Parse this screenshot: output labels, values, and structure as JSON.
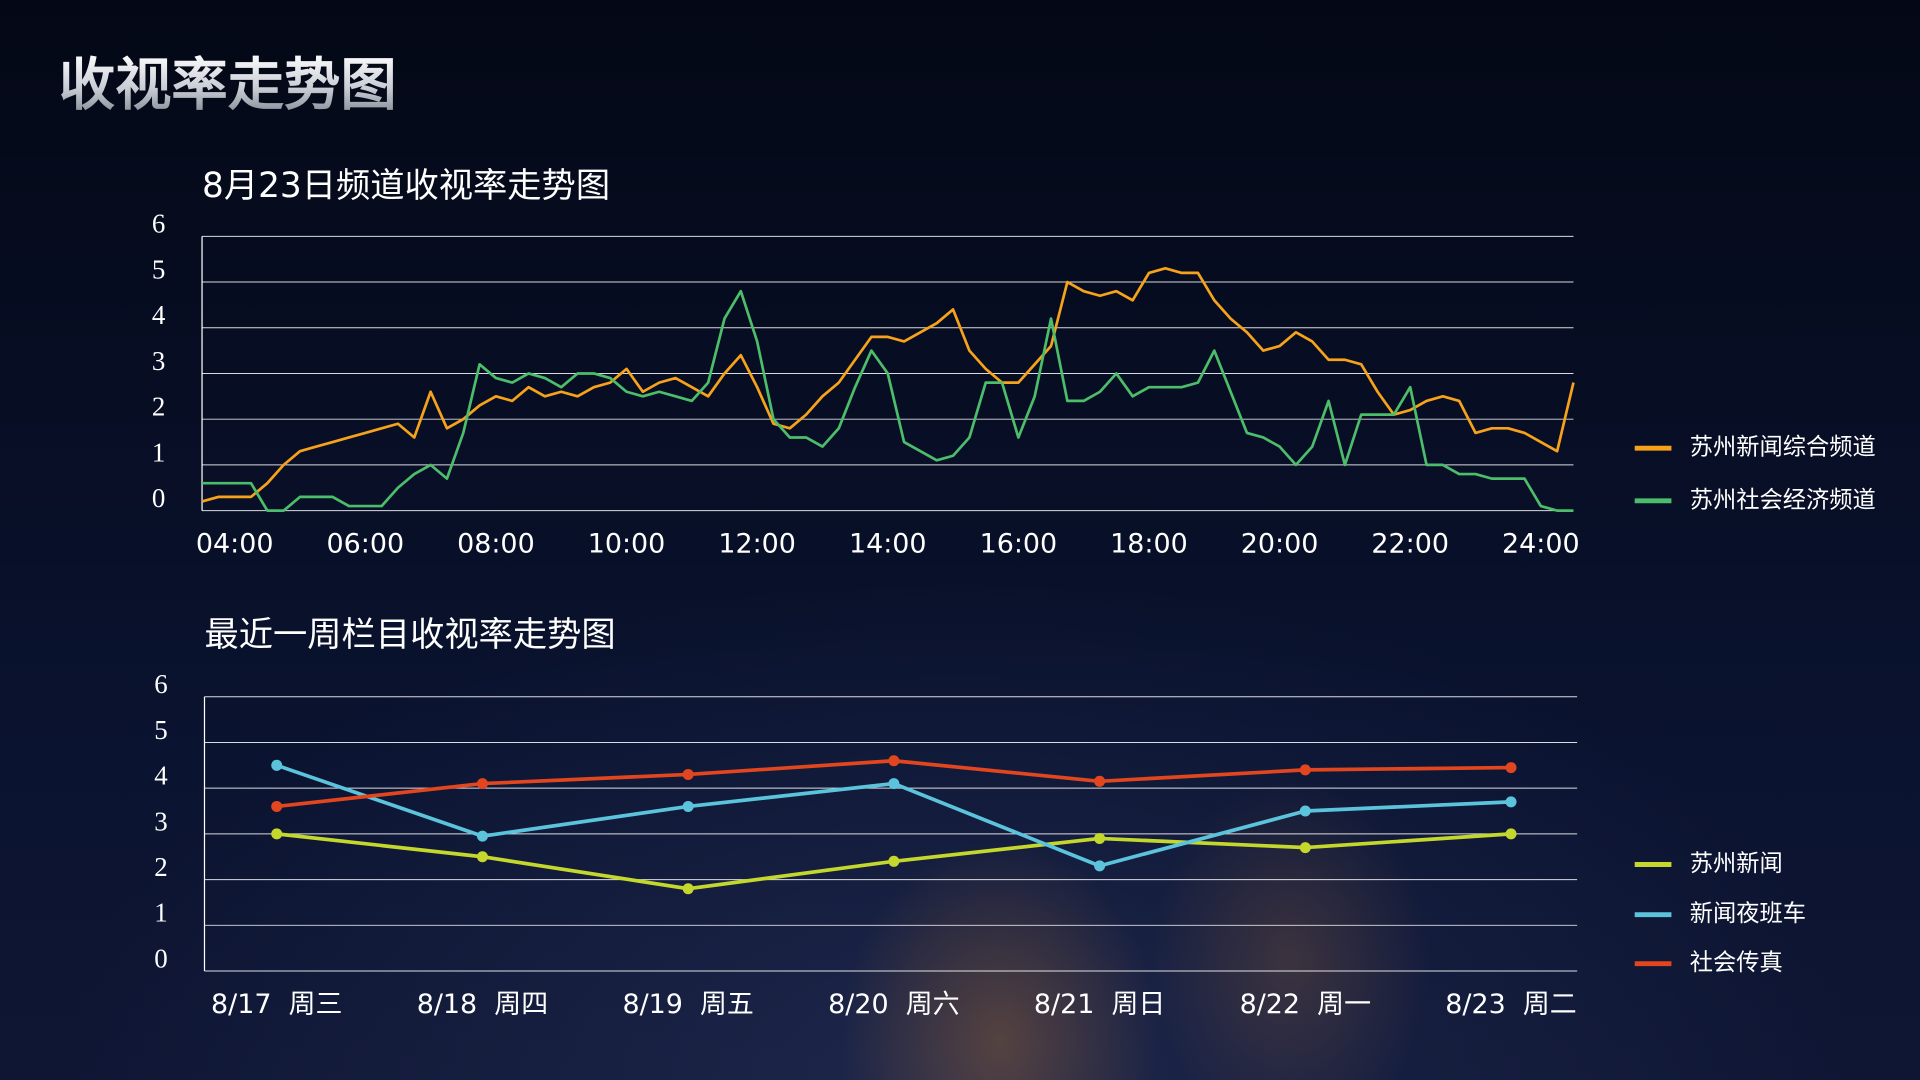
{
  "header": {
    "title": "收视率走势图"
  },
  "chart_data": [
    {
      "type": "line",
      "title": "8月23日频道收视率走势图",
      "x": [
        3.5,
        3.75,
        4,
        4.25,
        4.5,
        4.75,
        5,
        5.25,
        5.5,
        5.75,
        6,
        6.25,
        6.5,
        6.75,
        7,
        7.25,
        7.5,
        7.75,
        8,
        8.25,
        8.5,
        8.75,
        9,
        9.25,
        9.5,
        9.75,
        10,
        10.25,
        10.5,
        10.75,
        11,
        11.25,
        11.5,
        11.75,
        12,
        12.25,
        12.5,
        12.75,
        13,
        13.25,
        13.5,
        13.75,
        14,
        14.25,
        14.5,
        14.75,
        15,
        15.25,
        15.5,
        15.75,
        16,
        16.25,
        16.5,
        16.75,
        17,
        17.25,
        17.5,
        17.75,
        18,
        18.25,
        18.5,
        18.75,
        19,
        19.25,
        19.5,
        19.75,
        20,
        20.25,
        20.5,
        20.75,
        21,
        21.25,
        21.5,
        21.75,
        22,
        22.25,
        22.5,
        22.75,
        23,
        23.25,
        23.5,
        23.75,
        24,
        24.25,
        24.5
      ],
      "xlim": [
        3.5,
        24.5
      ],
      "xticks": [
        {
          "value": 4,
          "label": "04:00"
        },
        {
          "value": 6,
          "label": "06:00"
        },
        {
          "value": 8,
          "label": "08:00"
        },
        {
          "value": 10,
          "label": "10:00"
        },
        {
          "value": 12,
          "label": "12:00"
        },
        {
          "value": 14,
          "label": "14:00"
        },
        {
          "value": 16,
          "label": "16:00"
        },
        {
          "value": 18,
          "label": "18:00"
        },
        {
          "value": 20,
          "label": "20:00"
        },
        {
          "value": 22,
          "label": "22:00"
        },
        {
          "value": 24,
          "label": "24:00"
        }
      ],
      "ylim": [
        0,
        6
      ],
      "yticks": [
        0,
        1,
        2,
        3,
        4,
        5,
        6
      ],
      "grid": true,
      "legend": "right",
      "series": [
        {
          "name": "苏州新闻综合频道",
          "color": "#f7a21b",
          "values": [
            0.2,
            0.3,
            0.3,
            0.3,
            0.6,
            1.0,
            1.3,
            1.4,
            1.5,
            1.6,
            1.7,
            1.8,
            1.9,
            1.6,
            2.6,
            1.8,
            2.0,
            2.3,
            2.5,
            2.4,
            2.7,
            2.5,
            2.6,
            2.5,
            2.7,
            2.8,
            3.1,
            2.6,
            2.8,
            2.9,
            2.7,
            2.5,
            3.0,
            3.4,
            2.7,
            1.9,
            1.8,
            2.1,
            2.5,
            2.8,
            3.3,
            3.8,
            3.8,
            3.7,
            3.9,
            4.1,
            4.4,
            3.5,
            3.1,
            2.8,
            2.8,
            3.2,
            3.6,
            5.0,
            4.8,
            4.7,
            4.8,
            4.6,
            5.2,
            5.3,
            5.2,
            5.2,
            4.6,
            4.2,
            3.9,
            3.5,
            3.6,
            3.9,
            3.7,
            3.3,
            3.3,
            3.2,
            2.6,
            2.1,
            2.2,
            2.4,
            2.5,
            2.4,
            1.7,
            1.8,
            1.8,
            1.7,
            1.5,
            1.3,
            2.8
          ]
        },
        {
          "name": "苏州社会经济频道",
          "color": "#4cbd6a",
          "values": [
            0.6,
            0.6,
            0.6,
            0.6,
            0,
            0,
            0.3,
            0.3,
            0.3,
            0.1,
            0.1,
            0.1,
            0.5,
            0.8,
            1.0,
            0.7,
            1.7,
            3.2,
            2.9,
            2.8,
            3.0,
            2.9,
            2.7,
            3.0,
            3.0,
            2.9,
            2.6,
            2.5,
            2.6,
            2.5,
            2.4,
            2.8,
            4.2,
            4.8,
            3.7,
            2.0,
            1.6,
            1.6,
            1.4,
            1.8,
            2.7,
            3.5,
            3.0,
            1.5,
            1.3,
            1.1,
            1.2,
            1.6,
            2.8,
            2.8,
            1.6,
            2.5,
            4.2,
            2.4,
            2.4,
            2.6,
            3.0,
            2.5,
            2.7,
            2.7,
            2.7,
            2.8,
            3.5,
            2.6,
            1.7,
            1.6,
            1.4,
            1.0,
            1.4,
            2.4,
            1.0,
            2.1,
            2.1,
            2.1,
            2.7,
            1.0,
            1.0,
            0.8,
            0.8,
            0.7,
            0.7,
            0.7,
            0.1,
            0,
            0
          ]
        }
      ]
    },
    {
      "type": "line",
      "title": "最近一周栏目收视率走势图",
      "categories": [
        "8/17  周三",
        "8/18  周四",
        "8/19  周五",
        "8/20  周六",
        "8/21  周日",
        "8/22  周一",
        "8/23  周二"
      ],
      "ylim": [
        0,
        6
      ],
      "yticks": [
        0,
        1,
        2,
        3,
        4,
        5,
        6
      ],
      "grid": true,
      "legend": "right",
      "markers": true,
      "series": [
        {
          "name": "苏州新闻",
          "color": "#c4d72c",
          "values": [
            3.0,
            2.5,
            1.8,
            2.4,
            2.9,
            2.7,
            3.0
          ]
        },
        {
          "name": "新闻夜班车",
          "color": "#5bc4dc",
          "values": [
            4.5,
            2.95,
            3.6,
            4.1,
            2.3,
            3.5,
            3.7
          ]
        },
        {
          "name": "社会传真",
          "color": "#e2461e",
          "values": [
            3.6,
            4.1,
            4.3,
            4.6,
            4.15,
            4.4,
            4.45
          ]
        }
      ]
    }
  ]
}
